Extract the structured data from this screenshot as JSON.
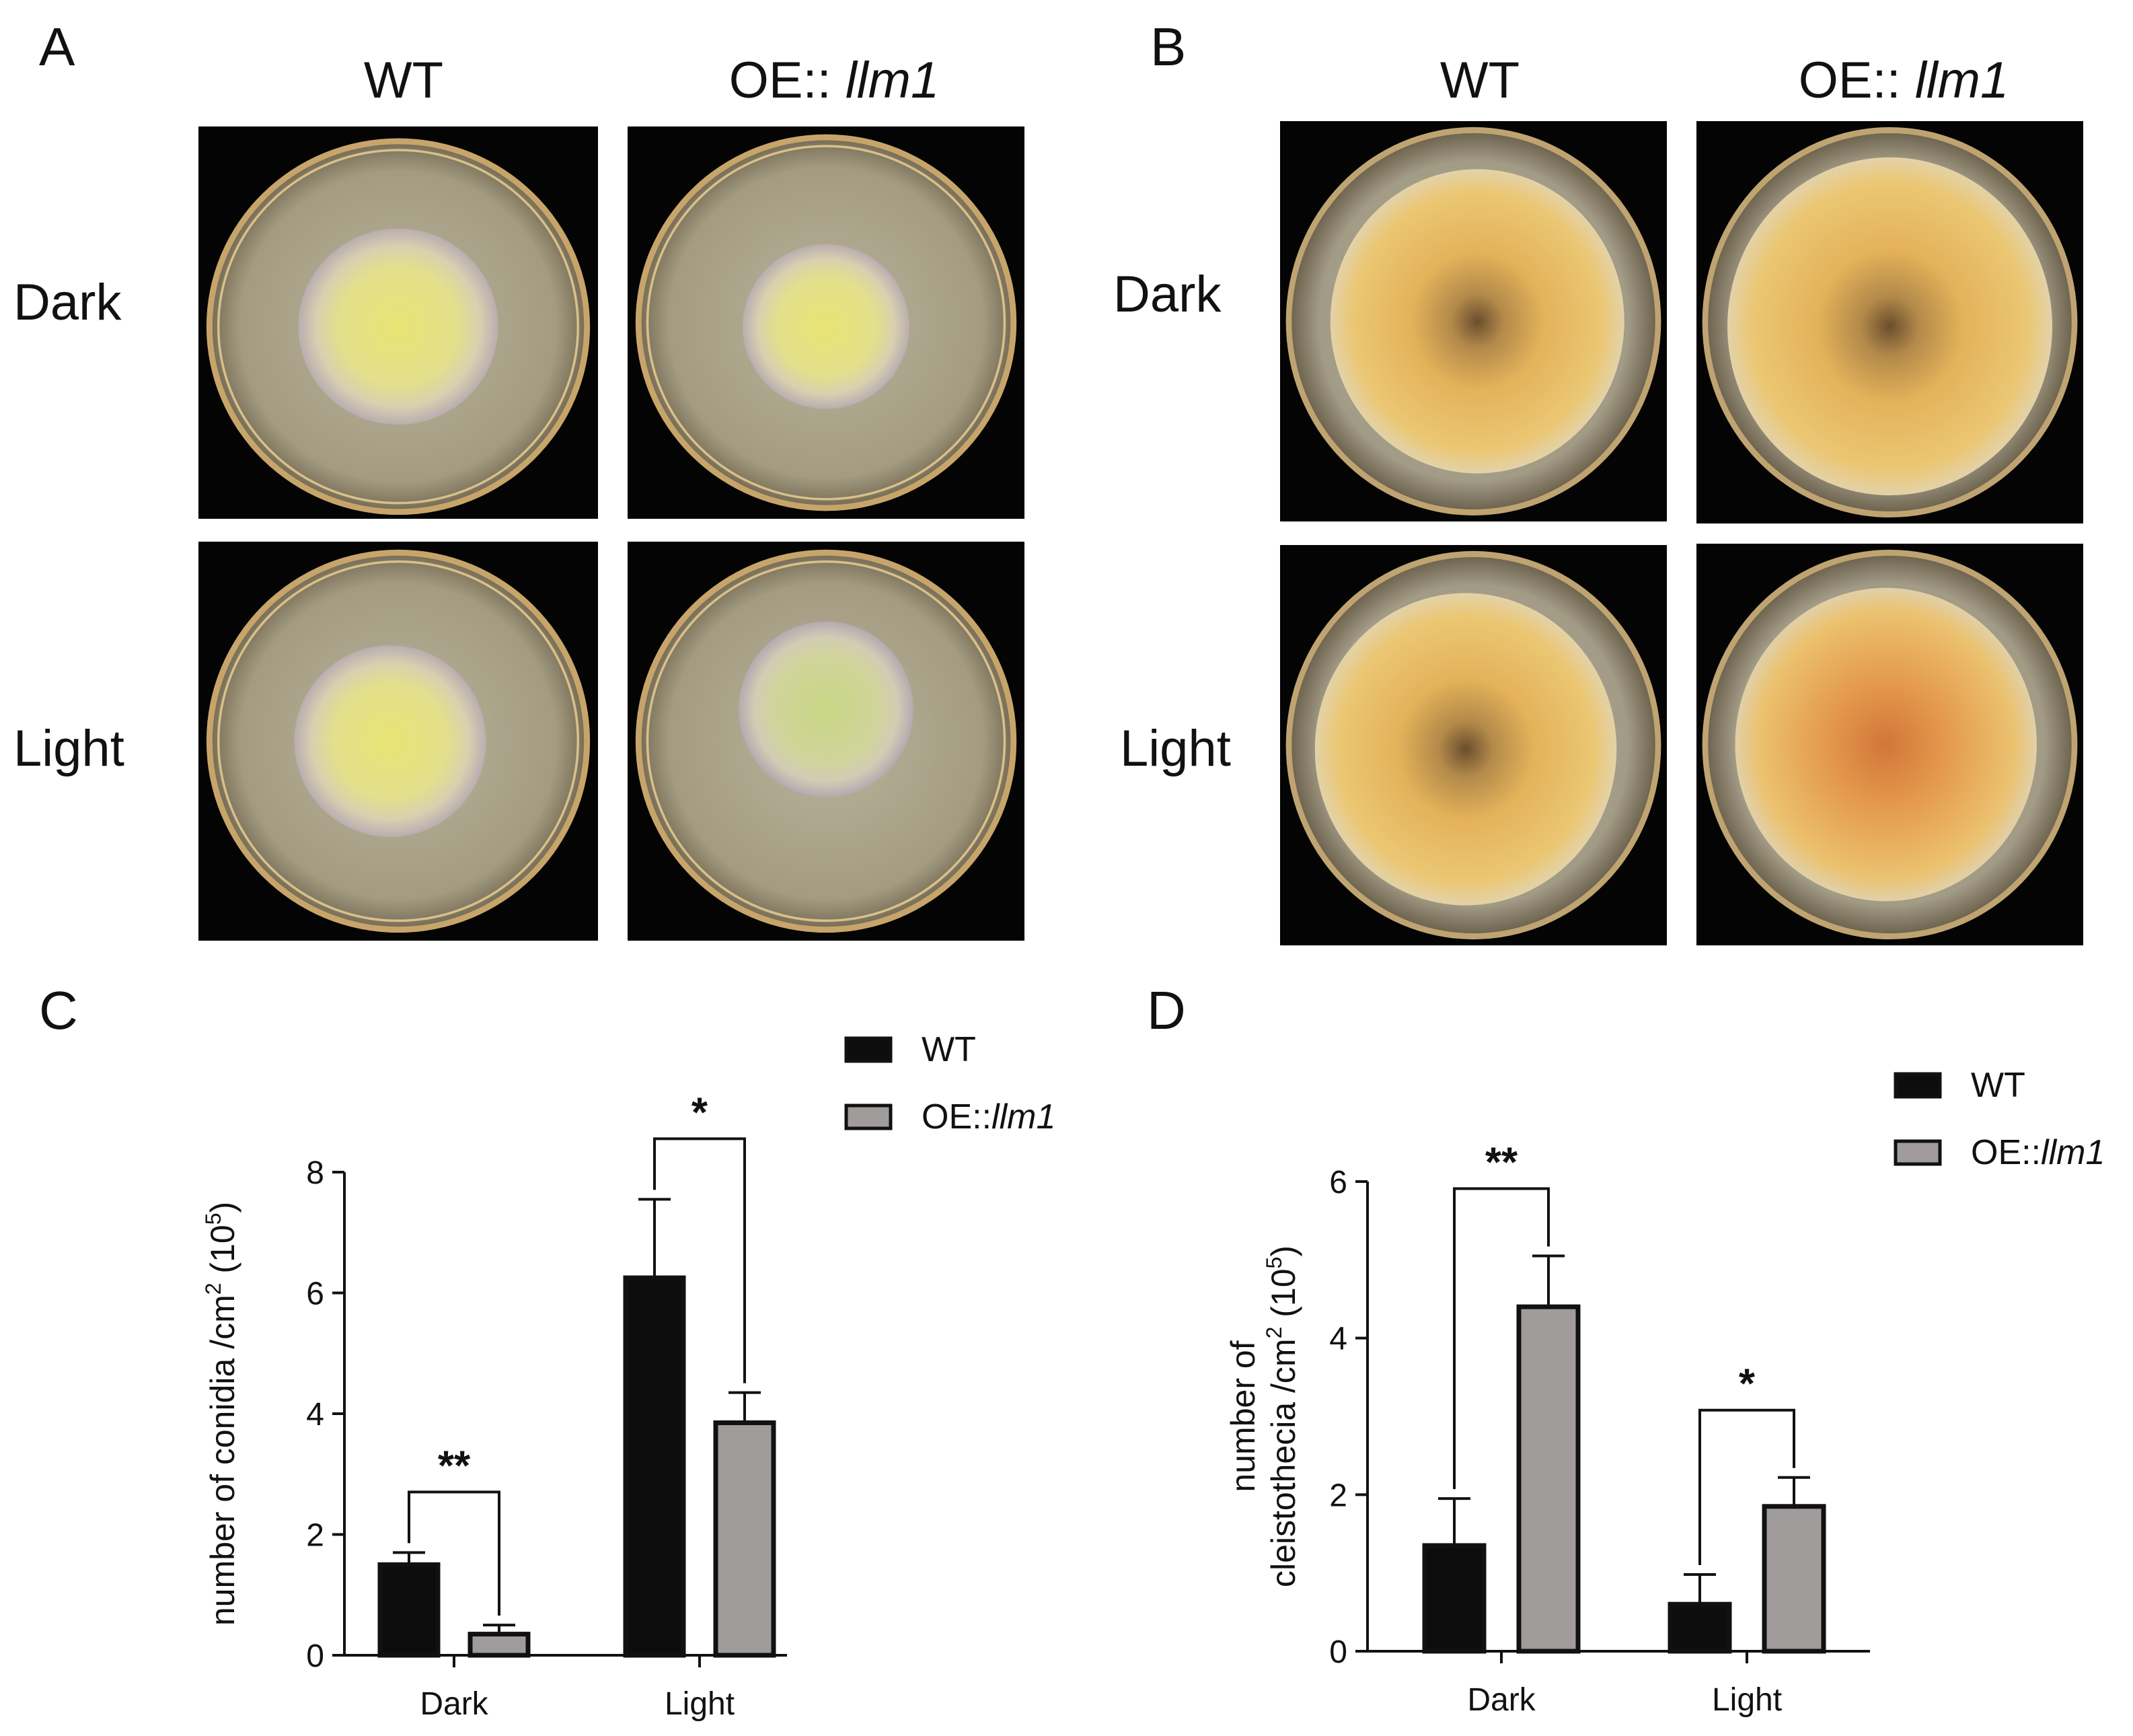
{
  "figure": {
    "panels": {
      "A": {
        "letter": "A",
        "columns": [
          "WT",
          "OE:: ",
          "llm1"
        ],
        "rows": [
          "Dark",
          "Light"
        ]
      },
      "B": {
        "letter": "B",
        "columns": [
          "WT",
          "OE:: ",
          "llm1"
        ],
        "rows": [
          "Dark",
          "Light"
        ]
      },
      "C": {
        "letter": "C"
      },
      "D": {
        "letter": "D"
      }
    },
    "colors": {
      "wt_bar": "#0d0d0d",
      "oe_bar": "#a09c9c",
      "photo_bg": "#050404"
    }
  },
  "chart_data": [
    {
      "panel": "C",
      "type": "bar",
      "categories": [
        "Dark",
        "Light"
      ],
      "series": [
        {
          "name": "WT",
          "values": [
            1.5,
            6.25
          ],
          "errors": [
            0.2,
            1.3
          ]
        },
        {
          "name": "OE::llm1",
          "values": [
            0.35,
            3.85
          ],
          "errors": [
            0.15,
            0.5
          ]
        }
      ],
      "ylabel": "number of conidia /cm2 (105)",
      "ylabel_parts": [
        "number of conidia /cm",
        "2",
        " (10",
        "5",
        ")"
      ],
      "ylim": [
        0,
        8
      ],
      "yticks": [
        0,
        2,
        4,
        6,
        8
      ],
      "significance": [
        "**",
        "*"
      ],
      "legend": {
        "position": "top-right",
        "entries": [
          "WT",
          "OE::",
          "llm1"
        ]
      },
      "grid": false
    },
    {
      "panel": "D",
      "type": "bar",
      "categories": [
        "Dark",
        "Light"
      ],
      "series": [
        {
          "name": "WT",
          "values": [
            1.35,
            0.6
          ],
          "errors": [
            0.6,
            0.38
          ]
        },
        {
          "name": "OE::llm1",
          "values": [
            4.4,
            1.85
          ],
          "errors": [
            0.65,
            0.37
          ]
        }
      ],
      "ylabel": "number of cleistothecia /cm2 (105)",
      "ylabel_parts": [
        "number of",
        "cleistothecia /cm",
        "2",
        " (10",
        "5",
        ")"
      ],
      "ylim": [
        0,
        6
      ],
      "yticks": [
        0,
        2,
        4,
        6
      ],
      "significance": [
        "**",
        "*"
      ],
      "legend": {
        "position": "top-right",
        "entries": [
          "WT",
          "OE::",
          "llm1"
        ]
      },
      "grid": false
    }
  ]
}
